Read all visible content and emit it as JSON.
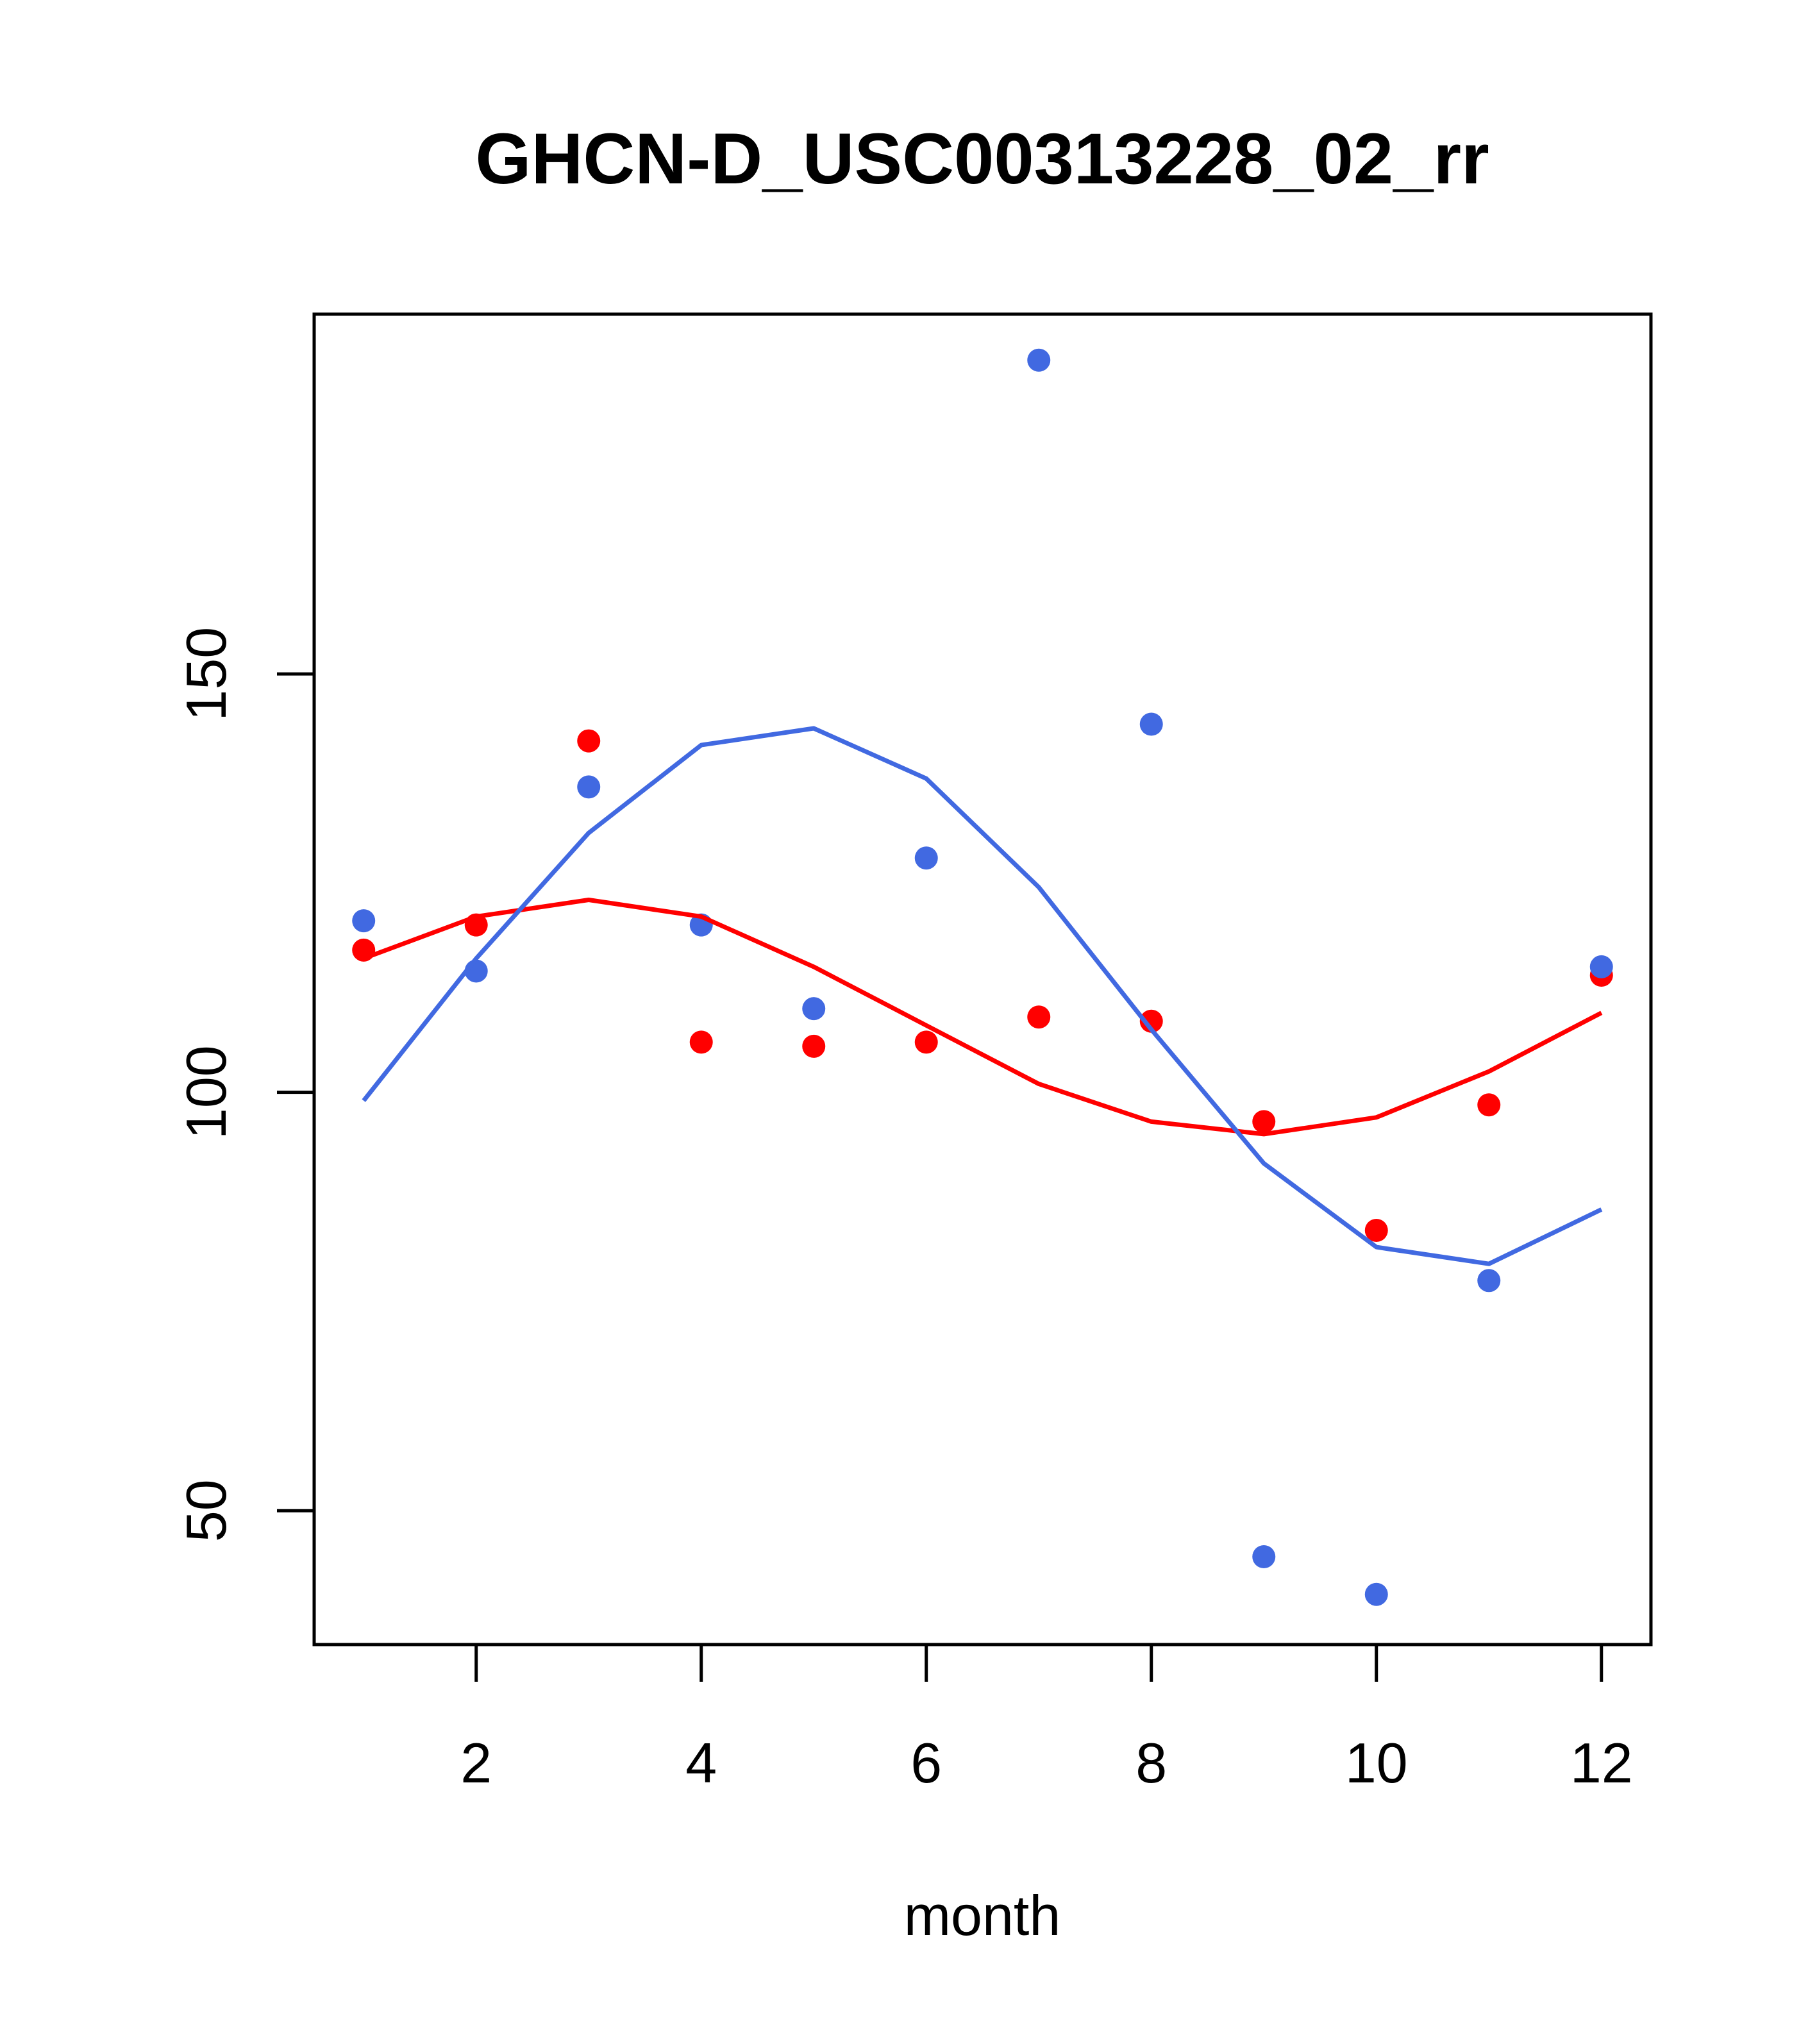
{
  "chart_data": {
    "type": "scatter",
    "title": "GHCN-D_USC00313228_02_rr",
    "xlabel": "month",
    "ylabel": "",
    "xlim": [
      0.56,
      12.44
    ],
    "ylim": [
      34,
      193
    ],
    "xticks": [
      2,
      4,
      6,
      8,
      10,
      12
    ],
    "yticks": [
      50,
      100,
      150
    ],
    "x": [
      1,
      2,
      3,
      4,
      5,
      6,
      7,
      8,
      9,
      10,
      11,
      12
    ],
    "series": [
      {
        "color": "#FF0000",
        "points": [
          117,
          120,
          142,
          106,
          105.5,
          106,
          109,
          108.5,
          96.5,
          83.5,
          98.5,
          114
        ],
        "line": [
          116,
          121,
          123,
          121,
          115,
          108,
          101,
          96.5,
          95,
          97,
          102.5,
          109.5
        ]
      },
      {
        "color": "#4169E1",
        "points": [
          120.5,
          114.5,
          136.5,
          120,
          110,
          128,
          187.5,
          144,
          44.5,
          40,
          77.5,
          115
        ],
        "line": [
          99,
          116,
          131,
          141.5,
          143.5,
          137.5,
          124.5,
          107.5,
          91.5,
          81.5,
          79.5,
          86
        ]
      }
    ]
  }
}
